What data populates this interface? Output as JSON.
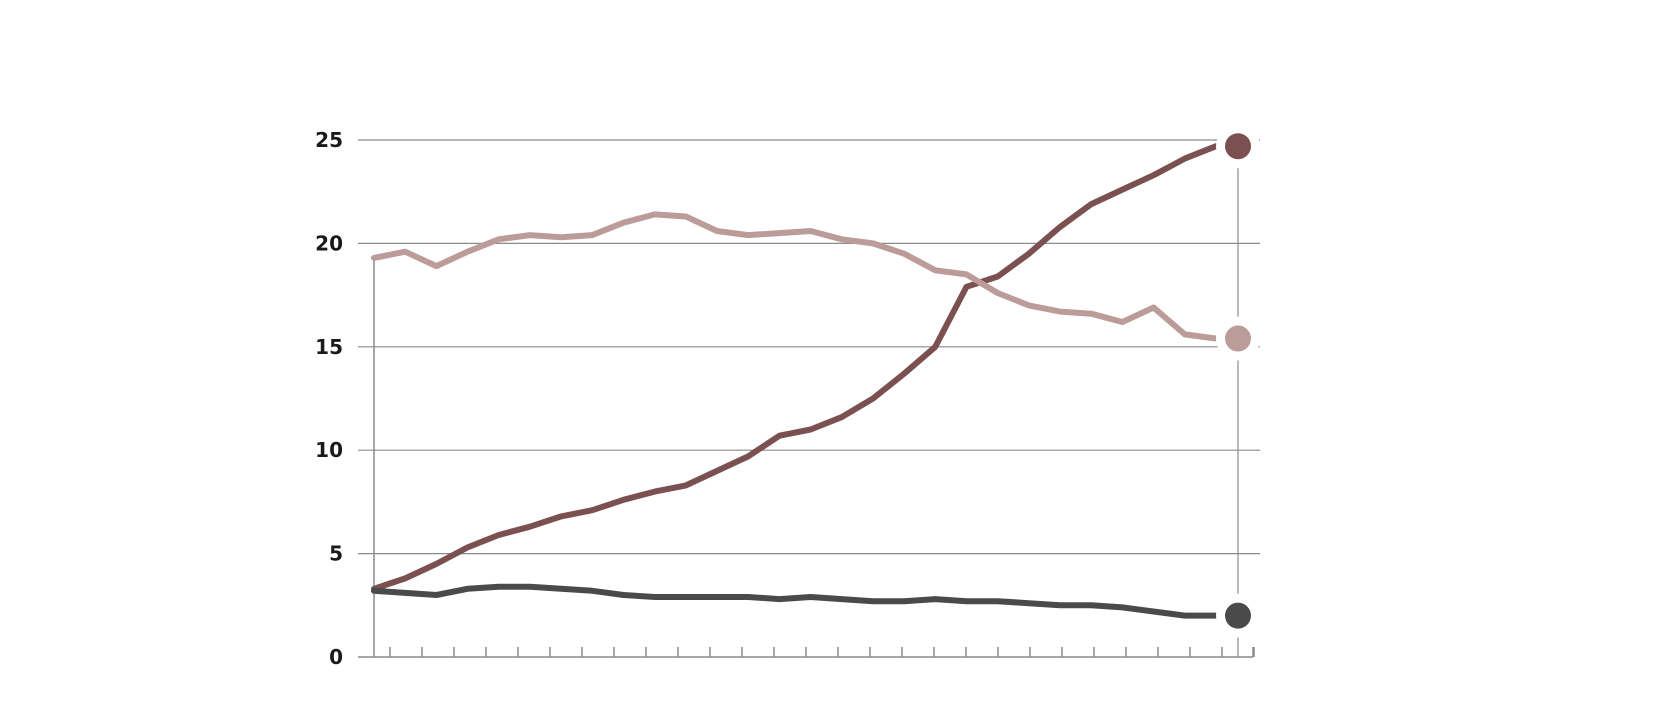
{
  "chart_data": {
    "type": "line",
    "title": "",
    "xlabel": "",
    "ylabel": "",
    "ylim": [
      0,
      25
    ],
    "yticks": [
      "0",
      "5",
      "10",
      "15",
      "20",
      "25"
    ],
    "grid": true,
    "x_ticks_count": 28,
    "series": [
      {
        "color": "#7a5150",
        "values": [
          3.3,
          3.8,
          4.5,
          5.3,
          5.9,
          6.3,
          6.8,
          7.1,
          7.6,
          8.0,
          8.3,
          9.0,
          9.7,
          10.7,
          11.0,
          11.6,
          12.5,
          13.7,
          15.0,
          17.9,
          18.4,
          19.5,
          20.8,
          21.9,
          22.6,
          23.3,
          24.1,
          24.7
        ]
      },
      {
        "color": "#bc9c99",
        "values": [
          19.3,
          19.6,
          18.9,
          19.6,
          20.2,
          20.4,
          20.3,
          20.4,
          21.0,
          21.4,
          21.3,
          20.6,
          20.4,
          20.5,
          20.6,
          20.2,
          20.0,
          19.5,
          18.7,
          18.5,
          17.6,
          17.0,
          16.7,
          16.6,
          16.2,
          16.9,
          15.6,
          15.4
        ]
      },
      {
        "color": "#4a4a4a",
        "values": [
          3.2,
          3.1,
          3.0,
          3.3,
          3.4,
          3.4,
          3.3,
          3.2,
          3.0,
          2.9,
          2.9,
          2.9,
          2.9,
          2.8,
          2.9,
          2.8,
          2.7,
          2.7,
          2.8,
          2.7,
          2.7,
          2.6,
          2.5,
          2.5,
          2.4,
          2.2,
          2.0,
          2.0
        ]
      }
    ]
  }
}
